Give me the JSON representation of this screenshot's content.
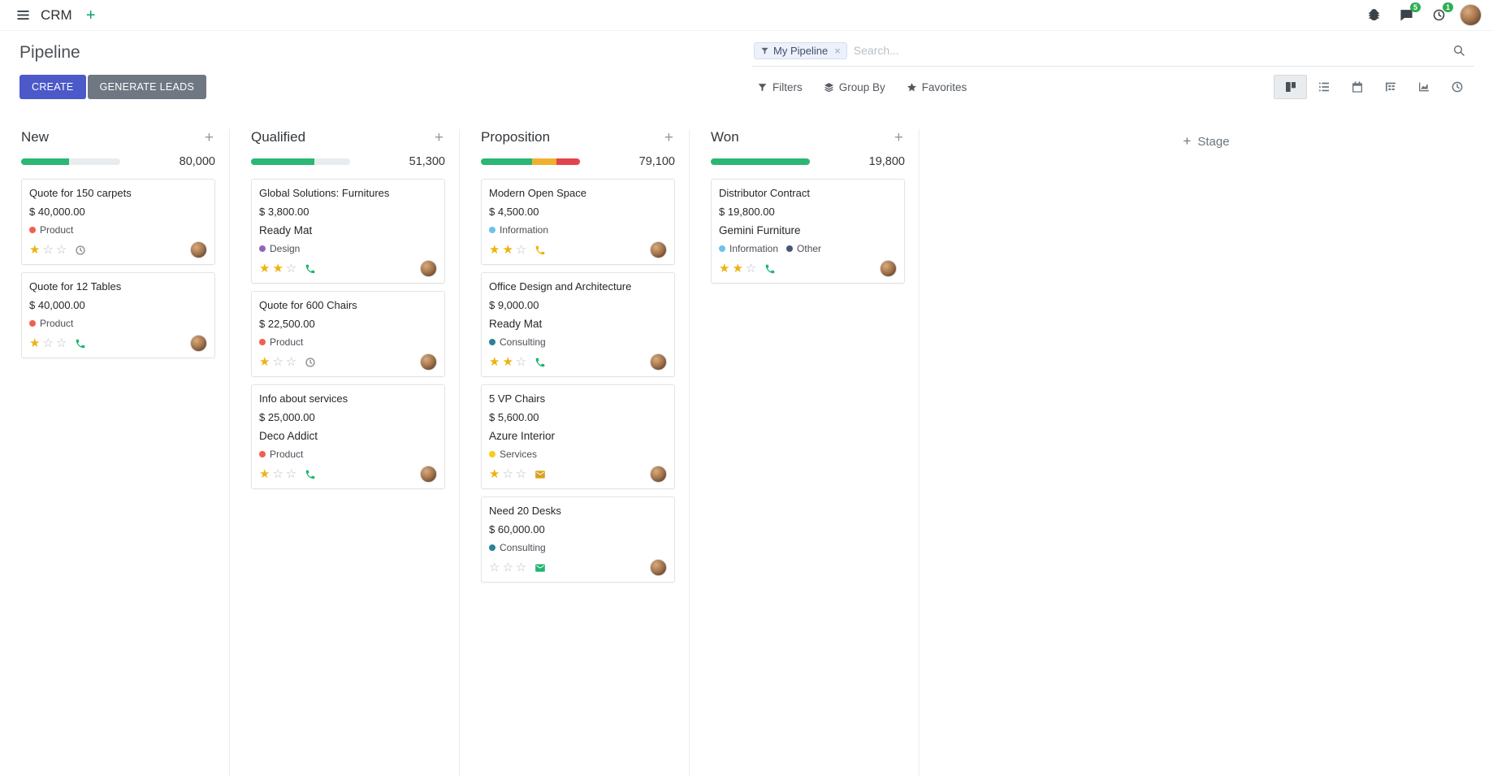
{
  "colors": {
    "primary": "#4c59c9",
    "secondary": "#6f7783",
    "progress_green": "#2bb673",
    "progress_orange": "#f0b02f",
    "progress_red": "#e2444d",
    "star_gold": "#edb211",
    "badge_green": "#2fae53"
  },
  "icons": {
    "navbar": [
      "apps-menu-icon",
      "plus-icon",
      "bug-icon",
      "chat-icon",
      "clock-icon"
    ],
    "search": [
      "filter-facet-icon",
      "search-icon"
    ],
    "tools": [
      "filter-icon",
      "group-by-layers-icon",
      "favorites-star-icon"
    ],
    "view_switcher": [
      "kanban-view-icon",
      "list-view-icon",
      "calendar-view-icon",
      "pivot-view-icon",
      "graph-view-icon",
      "activity-view-icon"
    ],
    "card_activities": [
      "clock-icon",
      "phone-icon",
      "envelope-icon"
    ]
  },
  "navbar": {
    "app_name": "CRM",
    "messages_badge": "5",
    "activities_badge": "1"
  },
  "control_panel": {
    "title": "Pipeline",
    "create_label": "CREATE",
    "generate_leads_label": "GENERATE LEADS",
    "filters_label": "Filters",
    "group_by_label": "Group By",
    "favorites_label": "Favorites",
    "search_facet": "My Pipeline",
    "search_placeholder": "Search..."
  },
  "board": {
    "add_stage_label": "Stage",
    "columns": [
      {
        "name": "New",
        "total": "80,000",
        "progress": [
          {
            "color": "#2bb673",
            "pct": 48
          }
        ],
        "cards": [
          {
            "title": "Quote for 150 carpets",
            "amount": "$ 40,000.00",
            "tags": [
              {
                "label": "Product",
                "color": "#f06050"
              }
            ],
            "stars": 1,
            "activity": {
              "icon": "clock",
              "color": "#8b9196"
            }
          },
          {
            "title": "Quote for 12 Tables",
            "amount": "$ 40,000.00",
            "tags": [
              {
                "label": "Product",
                "color": "#f06050"
              }
            ],
            "stars": 1,
            "activity": {
              "icon": "phone",
              "color": "#21b56f"
            }
          }
        ]
      },
      {
        "name": "Qualified",
        "total": "51,300",
        "progress": [
          {
            "color": "#2bb673",
            "pct": 64
          }
        ],
        "cards": [
          {
            "title": "Global Solutions: Furnitures",
            "amount": "$ 3,800.00",
            "partner": "Ready Mat",
            "tags": [
              {
                "label": "Design",
                "color": "#9365b8"
              }
            ],
            "stars": 2,
            "activity": {
              "icon": "phone",
              "color": "#21b56f"
            }
          },
          {
            "title": "Quote for 600 Chairs",
            "amount": "$ 22,500.00",
            "tags": [
              {
                "label": "Product",
                "color": "#f06050"
              }
            ],
            "stars": 1,
            "activity": {
              "icon": "clock",
              "color": "#8b9196"
            }
          },
          {
            "title": "Info about services",
            "amount": "$ 25,000.00",
            "partner": "Deco Addict",
            "tags": [
              {
                "label": "Product",
                "color": "#f06050"
              }
            ],
            "stars": 1,
            "activity": {
              "icon": "phone",
              "color": "#21b56f"
            }
          }
        ]
      },
      {
        "name": "Proposition",
        "total": "79,100",
        "progress": [
          {
            "color": "#2bb673",
            "pct": 52
          },
          {
            "color": "#f0b02f",
            "pct": 24
          },
          {
            "color": "#e2444d",
            "pct": 24
          }
        ],
        "cards": [
          {
            "title": "Modern Open Space",
            "amount": "$ 4,500.00",
            "tags": [
              {
                "label": "Information",
                "color": "#6cc1ed"
              }
            ],
            "stars": 2,
            "activity": {
              "icon": "phone",
              "color": "#efb30e"
            }
          },
          {
            "title": "Office Design and Architecture",
            "amount": "$ 9,000.00",
            "partner": "Ready Mat",
            "tags": [
              {
                "label": "Consulting",
                "color": "#2c8397"
              }
            ],
            "stars": 2,
            "activity": {
              "icon": "phone",
              "color": "#21b56f"
            }
          },
          {
            "title": "5 VP Chairs",
            "amount": "$ 5,600.00",
            "partner": "Azure Interior",
            "tags": [
              {
                "label": "Services",
                "color": "#f7cd1f"
              }
            ],
            "stars": 1,
            "activity": {
              "icon": "envelope",
              "color": "#d9a21c"
            }
          },
          {
            "title": "Need 20 Desks",
            "amount": "$ 60,000.00",
            "tags": [
              {
                "label": "Consulting",
                "color": "#2c8397"
              }
            ],
            "stars": 0,
            "activity": {
              "icon": "envelope",
              "color": "#21b56f"
            }
          }
        ]
      },
      {
        "name": "Won",
        "total": "19,800",
        "progress": [
          {
            "color": "#2bb673",
            "pct": 100
          }
        ],
        "cards": [
          {
            "title": "Distributor Contract",
            "amount": "$ 19,800.00",
            "partner": "Gemini Furniture",
            "tags": [
              {
                "label": "Information",
                "color": "#6cc1ed"
              },
              {
                "label": "Other",
                "color": "#475577"
              }
            ],
            "stars": 2,
            "activity": {
              "icon": "phone",
              "color": "#21b56f"
            }
          }
        ]
      }
    ]
  }
}
